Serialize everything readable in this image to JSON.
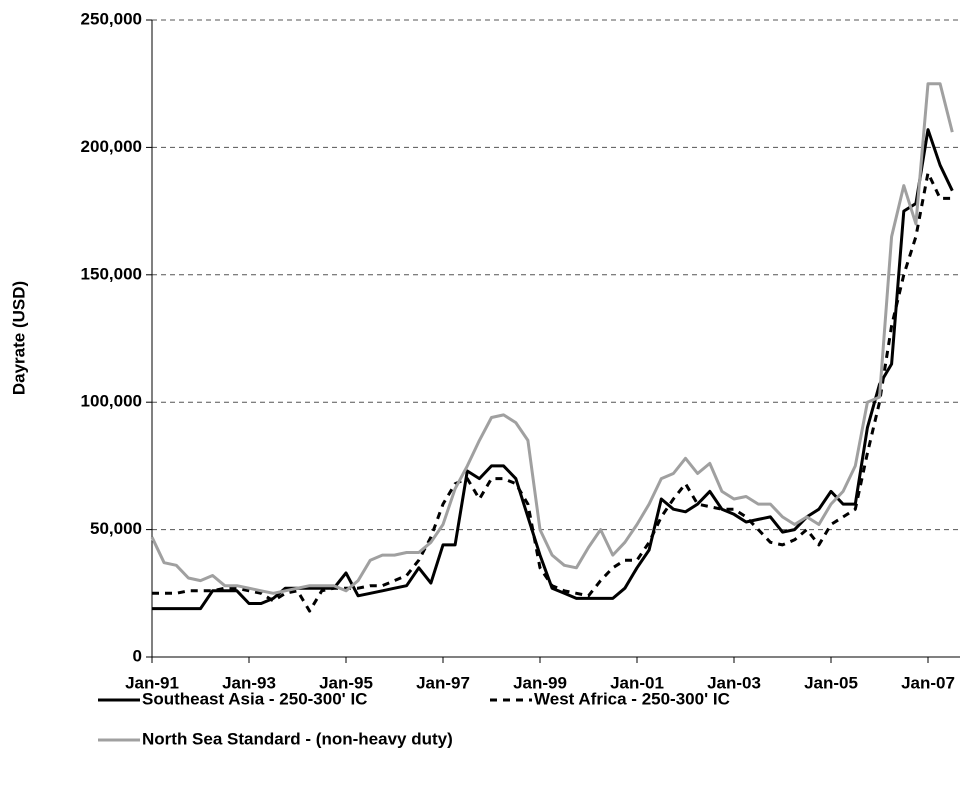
{
  "chart_data": {
    "type": "line",
    "y_label": "Dayrate (USD)",
    "categories": [
      "Jan-91",
      null,
      null,
      null,
      null,
      null,
      null,
      null,
      "Jan-93",
      null,
      null,
      null,
      null,
      null,
      null,
      null,
      "Jan-95",
      null,
      null,
      null,
      null,
      null,
      null,
      null,
      "Jan-97",
      null,
      null,
      null,
      null,
      null,
      null,
      null,
      "Jan-99",
      null,
      null,
      null,
      null,
      null,
      null,
      null,
      "Jan-01",
      null,
      null,
      null,
      null,
      null,
      null,
      null,
      "Jan-03",
      null,
      null,
      null,
      null,
      null,
      null,
      null,
      "Jan-05",
      null,
      null,
      null,
      null,
      null,
      null,
      null,
      "Jan-07",
      null,
      null
    ],
    "series": [
      {
        "name": "Southeast Asia - 250-300' IC",
        "color": "#000000",
        "style": "solid",
        "values": [
          19000,
          19000,
          19000,
          19000,
          19000,
          26000,
          26000,
          26000,
          21000,
          21000,
          23000,
          27000,
          27000,
          27000,
          27000,
          27000,
          33000,
          24000,
          25000,
          26000,
          27000,
          28000,
          35000,
          29000,
          44000,
          44000,
          73000,
          70000,
          75000,
          75000,
          70000,
          55000,
          40000,
          27000,
          25000,
          23000,
          23000,
          23000,
          23000,
          27000,
          35000,
          42000,
          62000,
          58000,
          57000,
          60000,
          65000,
          58000,
          56000,
          53000,
          54000,
          55000,
          49000,
          50000,
          55000,
          58000,
          65000,
          60000,
          60000,
          90000,
          107000,
          115000,
          175000,
          178000,
          207000,
          193000,
          183000
        ]
      },
      {
        "name": "West Africa - 250-300' IC",
        "color": "#000000",
        "style": "dashed",
        "values": [
          25000,
          25000,
          25000,
          26000,
          26000,
          26000,
          27000,
          27000,
          26000,
          25000,
          22000,
          25000,
          26000,
          18000,
          26000,
          27000,
          27000,
          27000,
          28000,
          28000,
          30000,
          32000,
          38000,
          47000,
          60000,
          68000,
          70000,
          62000,
          70000,
          70000,
          68000,
          60000,
          35000,
          28000,
          26000,
          25000,
          24000,
          30000,
          35000,
          38000,
          38000,
          45000,
          55000,
          62000,
          68000,
          60000,
          59000,
          58000,
          58000,
          55000,
          50000,
          45000,
          44000,
          46000,
          50000,
          44000,
          52000,
          55000,
          58000,
          80000,
          100000,
          130000,
          150000,
          165000,
          190000,
          180000,
          180000
        ]
      },
      {
        "name": "North Sea Standard - (non-heavy duty)",
        "color": "#a0a0a0",
        "style": "solid",
        "values": [
          47000,
          37000,
          36000,
          31000,
          30000,
          32000,
          28000,
          28000,
          27000,
          26000,
          25000,
          26000,
          27000,
          28000,
          28000,
          28000,
          26000,
          30000,
          38000,
          40000,
          40000,
          41000,
          41000,
          45000,
          52000,
          66000,
          75000,
          85000,
          94000,
          95000,
          92000,
          85000,
          50000,
          40000,
          36000,
          35000,
          43000,
          50000,
          40000,
          45000,
          52000,
          60000,
          70000,
          72000,
          78000,
          72000,
          76000,
          65000,
          62000,
          63000,
          60000,
          60000,
          55000,
          52000,
          55000,
          52000,
          60000,
          65000,
          75000,
          100000,
          102000,
          165000,
          185000,
          170000,
          225000,
          225000,
          206000
        ]
      }
    ],
    "ylim": [
      0,
      250000
    ],
    "yticks": [
      0,
      {
        "value": 50000,
        "label": "50,000"
      },
      {
        "value": 100000,
        "label": "100,000"
      },
      {
        "value": 150000,
        "label": "150,000"
      },
      {
        "value": 200000,
        "label": "200,000"
      },
      {
        "value": 250000,
        "label": "250,000"
      }
    ],
    "grid": true,
    "legend": "bottom"
  }
}
